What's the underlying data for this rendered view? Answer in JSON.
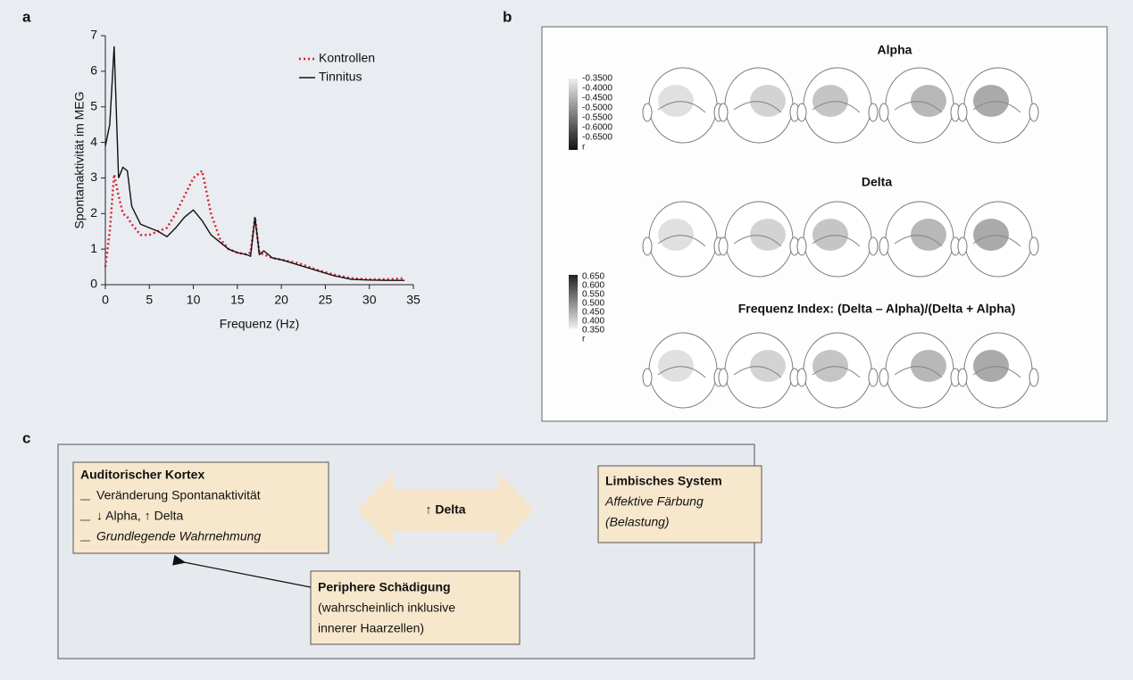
{
  "chart_data": {
    "type": "line",
    "x_label": "Frequenz (Hz)",
    "y_label": "Spontanaktivität im MEG",
    "x": [
      0,
      0.5,
      1,
      1.5,
      2,
      2.5,
      3,
      4,
      5,
      6,
      7,
      8,
      9,
      10,
      11,
      12,
      13,
      14,
      15,
      16,
      16.5,
      17,
      17.5,
      18,
      19,
      20,
      22,
      24,
      26,
      28,
      30,
      32,
      34
    ],
    "series": [
      {
        "name": "Kontrollen",
        "color": "#d8232a",
        "line_style": "dotted",
        "values": [
          0.5,
          1.5,
          3.1,
          2.5,
          2.0,
          1.9,
          1.7,
          1.4,
          1.4,
          1.5,
          1.6,
          2.0,
          2.5,
          3.0,
          3.2,
          2.0,
          1.3,
          1.0,
          0.9,
          0.85,
          0.9,
          1.9,
          0.9,
          0.85,
          0.75,
          0.7,
          0.6,
          0.42,
          0.28,
          0.18,
          0.15,
          0.15,
          0.18
        ]
      },
      {
        "name": "Tinnitus",
        "color": "#111111",
        "line_style": "solid",
        "values": [
          3.9,
          4.5,
          6.7,
          3.0,
          3.3,
          3.2,
          2.2,
          1.7,
          1.6,
          1.5,
          1.35,
          1.6,
          1.9,
          2.1,
          1.8,
          1.4,
          1.2,
          1.0,
          0.9,
          0.85,
          0.8,
          1.9,
          0.85,
          0.95,
          0.75,
          0.7,
          0.55,
          0.4,
          0.25,
          0.15,
          0.13,
          0.12,
          0.12
        ]
      }
    ],
    "xlim": [
      0,
      35
    ],
    "xticks": [
      0,
      5,
      10,
      15,
      20,
      25,
      30,
      35
    ],
    "ylim": [
      0,
      7
    ],
    "yticks": [
      0,
      1,
      2,
      3,
      4,
      5,
      6,
      7
    ],
    "legend": "upper right"
  },
  "panel_labels": [
    "a",
    "b",
    "c"
  ],
  "brain_maps": {
    "titles": [
      "Alpha",
      "Delta",
      "Frequenz Index: (Delta – Alpha)/(Delta + Alpha)"
    ],
    "colorbars": [
      [
        "-0.3500",
        "-0.4000",
        "-0.4500",
        "-0.5000",
        "-0.5500",
        "-0.6000",
        "-0.6500",
        "r"
      ],
      [
        "0.650",
        "0.600",
        "0.550",
        "0.500",
        "0.450",
        "0.400",
        "0.350",
        "r"
      ]
    ]
  },
  "diagram": {
    "auditory": {
      "title": "Auditorischer Kortex",
      "items": [
        "Veränderung Spontanaktivität",
        "↓ Alpha, ↑ Delta",
        "Grundlegende Wahrnehmung"
      ]
    },
    "arrow_label": "↑ Delta",
    "limbic": {
      "title": "Limbisches System",
      "lines": [
        "Affektive Färbung",
        "(Belastung)"
      ]
    },
    "peripheral": {
      "title": "Periphere Schädigung",
      "lines": [
        "(wahrscheinlich inklusive",
        "innerer Haarzellen)"
      ]
    }
  }
}
